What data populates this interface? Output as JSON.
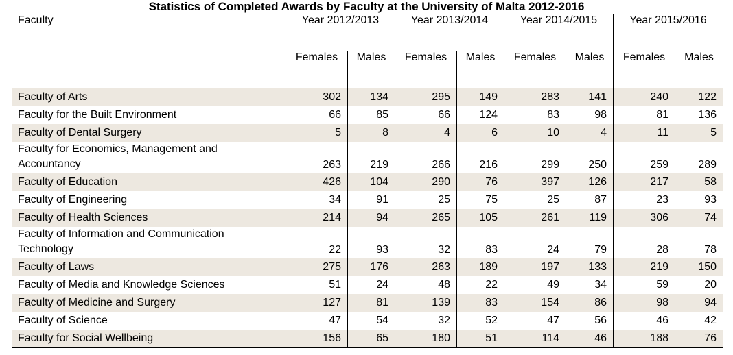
{
  "title": "Statistics of Completed Awards by Faculty at the University of Malta 2012-2016",
  "table": {
    "faculty_header": "Faculty",
    "years": [
      "Year 2012/2013",
      "Year 2013/2014",
      "Year 2014/2015",
      "Year 2015/2016"
    ],
    "sub_headers": [
      "Females",
      "Males",
      "Females",
      "Males",
      "Females",
      "Males",
      "Females",
      "Males"
    ],
    "rows": [
      {
        "faculty": "Faculty of Arts",
        "values": [
          "302",
          "134",
          "295",
          "149",
          "283",
          "141",
          "240",
          "122"
        ]
      },
      {
        "faculty": "Faculty for the Built Environment",
        "values": [
          "66",
          "85",
          "66",
          "124",
          "83",
          "98",
          "81",
          "136"
        ]
      },
      {
        "faculty": "Faculty of Dental Surgery",
        "values": [
          "5",
          "8",
          "4",
          "6",
          "10",
          "4",
          "11",
          "5"
        ]
      },
      {
        "faculty": "Faculty for Economics, Management and Accountancy",
        "values": [
          "263",
          "219",
          "266",
          "216",
          "299",
          "250",
          "259",
          "289"
        ]
      },
      {
        "faculty": "Faculty of Education",
        "values": [
          "426",
          "104",
          "290",
          "76",
          "397",
          "126",
          "217",
          "58"
        ]
      },
      {
        "faculty": "Faculty of Engineering",
        "values": [
          "34",
          "91",
          "25",
          "75",
          "25",
          "87",
          "23",
          "93"
        ]
      },
      {
        "faculty": "Faculty of Health Sciences",
        "values": [
          "214",
          "94",
          "265",
          "105",
          "261",
          "119",
          "306",
          "74"
        ]
      },
      {
        "faculty": "Faculty of Information and Communication Technology",
        "values": [
          "22",
          "93",
          "32",
          "83",
          "24",
          "79",
          "28",
          "78"
        ]
      },
      {
        "faculty": "Faculty of Laws",
        "values": [
          "275",
          "176",
          "263",
          "189",
          "197",
          "133",
          "219",
          "150"
        ]
      },
      {
        "faculty": "Faculty of Media and Knowledge Sciences",
        "values": [
          "51",
          "24",
          "48",
          "22",
          "49",
          "34",
          "59",
          "20"
        ]
      },
      {
        "faculty": "Faculty of Medicine and Surgery",
        "values": [
          "127",
          "81",
          "139",
          "83",
          "154",
          "86",
          "98",
          "94"
        ]
      },
      {
        "faculty": "Faculty of Science",
        "values": [
          "47",
          "54",
          "32",
          "52",
          "47",
          "56",
          "46",
          "42"
        ]
      },
      {
        "faculty": "Faculty for Social Wellbeing",
        "values": [
          "156",
          "65",
          "180",
          "51",
          "114",
          "46",
          "188",
          "76"
        ]
      }
    ]
  }
}
